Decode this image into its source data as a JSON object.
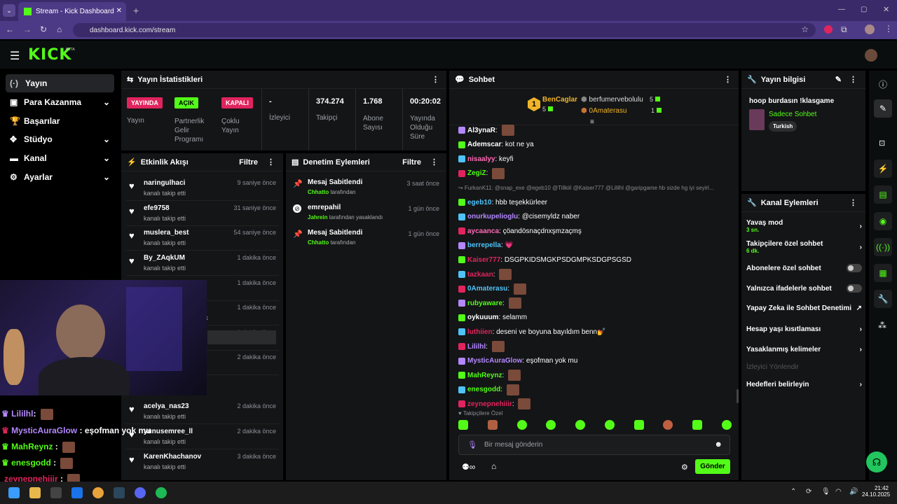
{
  "browser": {
    "tab_title": "Stream - Kick Dashboard",
    "url": "dashboard.kick.com/stream"
  },
  "header": {
    "logo": "KICK",
    "beta": "BETA"
  },
  "sidebar": {
    "items": [
      {
        "label": "Yayın",
        "icon": "live-icon"
      },
      {
        "label": "Para Kazanma",
        "icon": "money-icon"
      },
      {
        "label": "Başarılar",
        "icon": "trophy-icon"
      },
      {
        "label": "Stüdyo",
        "icon": "studio-icon"
      },
      {
        "label": "Kanal",
        "icon": "channel-icon"
      },
      {
        "label": "Ayarlar",
        "icon": "gear-icon"
      }
    ]
  },
  "stats": {
    "title": "Yayın İstatistikleri",
    "cells": [
      {
        "badge": "YAYINDA",
        "label": "Yayın",
        "color": "#e0245e"
      },
      {
        "badge": "AÇIK",
        "label": "Partnerlik Gelir Programı",
        "color": "#53fc18"
      },
      {
        "badge": "KAPALI",
        "label": "Çoklu Yayın",
        "color": "#e0245e"
      },
      {
        "value": "-",
        "label": "İzleyici"
      },
      {
        "value": "374.274",
        "label": "Takipçi"
      },
      {
        "value": "1.768",
        "label": "Abone Sayısı"
      },
      {
        "value": "00:20:02",
        "label": "Yayında Olduğu Süre"
      }
    ]
  },
  "activity": {
    "title": "Etkinlik Akışı",
    "filter": "Filtre",
    "rows": [
      {
        "name": "naringulhaci",
        "sub": "kanalı takip etti",
        "time": "9 saniye önce"
      },
      {
        "name": "efe9758",
        "sub": "kanalı takip etti",
        "time": "31 saniye önce"
      },
      {
        "name": "muslera_best",
        "sub": "kanalı takip etti",
        "time": "54 saniye önce"
      },
      {
        "name": "By_ZAqkUM",
        "sub": "kanalı takip etti",
        "time": "1 dakika önce"
      },
      {
        "name": "",
        "sub": "",
        "time": "1 dakika önce"
      },
      {
        "name": "",
        "sub": "tluyor! Toplam abonelik",
        "time": "1 dakika önce"
      },
      {
        "name": "",
        "sub": "",
        "time": "1 dakika önce"
      },
      {
        "name": "",
        "sub": "",
        "time": "2 dakika önce"
      },
      {
        "name": "acelya_nas23",
        "sub": "kanalı takip etti",
        "time": "2 dakika önce"
      },
      {
        "name": "yunusemree_ll",
        "sub": "kanalı takip etti",
        "time": "2 dakika önce"
      },
      {
        "name": "KarenKhachanov",
        "sub": "kanalı takip etti",
        "time": "3 dakika önce"
      }
    ]
  },
  "moderation": {
    "title": "Denetim Eylemleri",
    "filter": "Filtre",
    "rows": [
      {
        "title": "Mesaj Sabitlendi",
        "who": "Chhatto",
        "rest": "tarafından",
        "time": "3 saat önce"
      },
      {
        "title": "emrepahil",
        "who": "Jahrein",
        "rest": "tarafından yasaklandı",
        "time": "1 gün önce"
      },
      {
        "title": "Mesaj Sabitlendi",
        "who": "Chhatto",
        "rest": "tarafından",
        "time": "1 gün önce"
      }
    ]
  },
  "chat": {
    "title": "Sohbet",
    "top": [
      {
        "rank": "1",
        "name": "BenCaglar",
        "count": "5"
      },
      {
        "name": "berfumervebolulu",
        "count": "5"
      },
      {
        "name": "0Amaterasu",
        "count": "1"
      }
    ],
    "messages": [
      {
        "user": "Al3ynaR",
        "text": "",
        "color": "#ffffff",
        "emote": true
      },
      {
        "user": "Ademscar",
        "text": "kot ne ya",
        "color": "#ffffff"
      },
      {
        "user": "nisaalyy",
        "text": "keyfi",
        "color": "#ff69b4"
      },
      {
        "user": "ZegiZ",
        "text": "",
        "color": "#53fc18",
        "emote": true
      },
      {
        "user": "",
        "text": "↪ FurkanK11: @snap_exe @egeb10 @Tillkiil @Kaiser777 @Lililhl @garipgame hb sizde hg iyi seyirl...",
        "color": "#888888",
        "reply": true
      },
      {
        "user": "egeb10",
        "text": "hbb teşekkürleer",
        "color": "#4fc3f7"
      },
      {
        "user": "onurkupelioglu",
        "text": "@cisemyldz naber",
        "color": "#b388ff"
      },
      {
        "user": "aycaanca",
        "text": "çöandösnaçdnxşmzaçmş",
        "color": "#ff69b4"
      },
      {
        "user": "berrepella",
        "text": "💗",
        "color": "#4fc3f7"
      },
      {
        "user": "Kaiser777",
        "text": "DSGPKIDSMGKPSDGMPKSDGPSGSD",
        "color": "#e0245e"
      },
      {
        "user": "tazkaan",
        "text": "",
        "color": "#e0245e",
        "emote": true
      },
      {
        "user": "0Amaterasu",
        "text": "",
        "color": "#4fc3f7",
        "emote": true
      },
      {
        "user": "rubyaware",
        "text": "",
        "color": "#53fc18",
        "emote": true
      },
      {
        "user": "oykuuum",
        "text": "selamm",
        "color": "#ffffff"
      },
      {
        "user": "luthiien",
        "text": "deseni ve boyuna bayıldım benn💅",
        "color": "#e0245e"
      },
      {
        "user": "Lililhl",
        "text": "",
        "color": "#b388ff",
        "emote": true
      },
      {
        "user": "MysticAuraGlow",
        "text": "eşofman yok mu",
        "color": "#b388ff"
      },
      {
        "user": "MahReynz",
        "text": "",
        "color": "#53fc18",
        "emote": true
      },
      {
        "user": "enesgodd",
        "text": "",
        "color": "#53fc18",
        "emote": true
      },
      {
        "user": "zeynepnehiiir",
        "text": "",
        "color": "#e0245e",
        "emote": true
      }
    ],
    "followers_only": "Takipçilere Özel",
    "input_placeholder": "Bir mesaj gönderin",
    "send": "Gönder"
  },
  "stream_info": {
    "title": "Yayın bilgisi",
    "stream_title": "hoop burdasın !klasgame",
    "category": "Sadece Sohbet",
    "tag": "Turkish"
  },
  "channel_actions": {
    "title": "Kanal Eylemleri",
    "rows": [
      {
        "label": "Yavaş mod",
        "sub": "3 sn.",
        "control": "chevron"
      },
      {
        "label": "Takipçilere özel sohbet",
        "sub": "6 dk.",
        "control": "chevron"
      },
      {
        "label": "Abonelere özel sohbet",
        "control": "toggle"
      },
      {
        "label": "Yalnızca ifadelerle sohbet",
        "control": "toggle"
      },
      {
        "label": "Yapay Zeka ile Sohbet Denetimi",
        "control": "external"
      },
      {
        "label": "Hesap yaşı kısıtlaması",
        "control": "chevron"
      },
      {
        "label": "Yasaklanmış kelimeler",
        "control": "chevron"
      },
      {
        "label": "İzleyici Yönlendir",
        "control": "none",
        "disabled": true
      },
      {
        "label": "Hedefleri belirleyin",
        "control": "chevron"
      }
    ]
  },
  "overlay_chat": [
    {
      "user": "Lililhl",
      "text": ":",
      "color": "#b388ff"
    },
    {
      "user": "MysticAuraGlow",
      "text": ": eşofman yok mu",
      "color": "#b388ff"
    },
    {
      "user": "MahReynz",
      "text": ":",
      "color": "#53fc18"
    },
    {
      "user": "enesgodd",
      "text": ":",
      "color": "#53fc18"
    },
    {
      "user": "zeynepnehiiir",
      "text": ":",
      "color": "#e0245e"
    }
  ],
  "taskbar": {
    "time": "21:42",
    "date": "24.10.2025"
  }
}
